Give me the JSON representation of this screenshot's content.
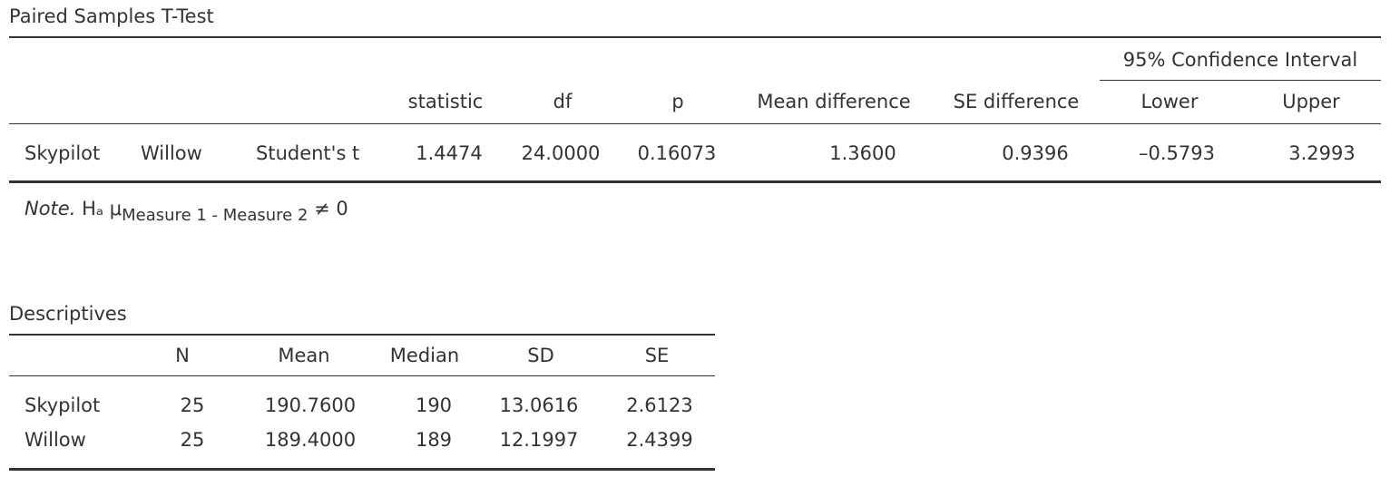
{
  "ttest": {
    "title": "Paired Samples T-Test",
    "ci_header": "95% Confidence Interval",
    "columns": [
      "statistic",
      "df",
      "p",
      "Mean difference",
      "SE difference",
      "Lower",
      "Upper"
    ],
    "rows": [
      [
        "Skypilot",
        "Willow",
        "Student's t",
        "1.4474",
        "24.0000",
        "0.16073",
        "1.3600",
        "0.9396",
        "–0.5793",
        "3.2993"
      ]
    ],
    "note": {
      "label": "Note.",
      "text": "Hₐ μ",
      "subscript": "Measure 1 - Measure 2",
      "relation": "≠ 0"
    }
  },
  "descriptives": {
    "title": "Descriptives",
    "columns": [
      "N",
      "Mean",
      "Median",
      "SD",
      "SE"
    ],
    "rows": [
      [
        "Skypilot",
        "25",
        "190.7600",
        "190",
        "13.0616",
        "2.6123"
      ],
      [
        "Willow",
        "25",
        "189.4000",
        "189",
        "12.1997",
        "2.4399"
      ]
    ]
  }
}
